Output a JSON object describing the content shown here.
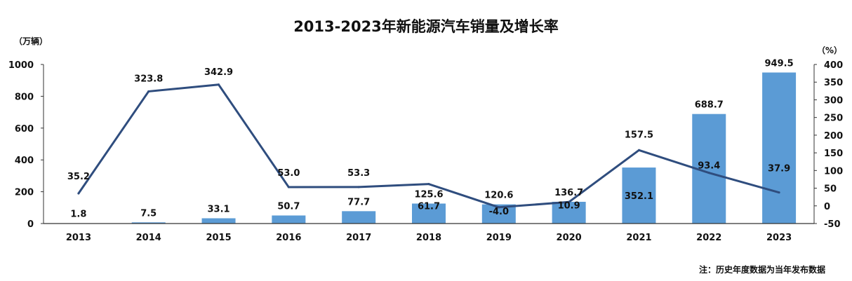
{
  "title": "2013-2023年新能源汽车销量及增长率",
  "left_unit": "（万辆）",
  "right_unit": "（%）",
  "note": "注：历史年度数据为当年发布数据",
  "colors": {
    "bar": "#5b9bd5",
    "line": "#2f4d7e",
    "axis": "#333333"
  },
  "chart_data": {
    "type": "bar",
    "categories": [
      "2013",
      "2014",
      "2015",
      "2016",
      "2017",
      "2018",
      "2019",
      "2020",
      "2021",
      "2022",
      "2023"
    ],
    "ylim_left": [
      0,
      1000
    ],
    "yticks_left": [
      0,
      200,
      400,
      600,
      800,
      1000
    ],
    "ylim_right": [
      -50,
      400
    ],
    "yticks_right": [
      -50,
      0,
      50,
      100,
      150,
      200,
      250,
      300,
      350,
      400
    ],
    "series": [
      {
        "type": "bar",
        "axis": "left",
        "values": [
          1.8,
          7.5,
          33.1,
          50.7,
          77.7,
          125.6,
          120.6,
          136.7,
          352.1,
          688.7,
          949.5
        ],
        "labels": [
          "1.8",
          "7.5",
          "33.1",
          "50.7",
          "77.7",
          "125.6",
          "120.6",
          "136.7",
          "352.1",
          "688.7",
          "949.5"
        ]
      },
      {
        "type": "line",
        "axis": "right",
        "values": [
          35.2,
          323.8,
          342.9,
          53.0,
          53.3,
          61.7,
          -4.0,
          10.9,
          157.5,
          93.4,
          37.9
        ],
        "labels": [
          "35.2",
          "323.8",
          "342.9",
          "53.0",
          "53.3",
          "61.7",
          "-4.0",
          "10.9",
          "157.5",
          "93.4",
          "37.9"
        ]
      }
    ]
  }
}
